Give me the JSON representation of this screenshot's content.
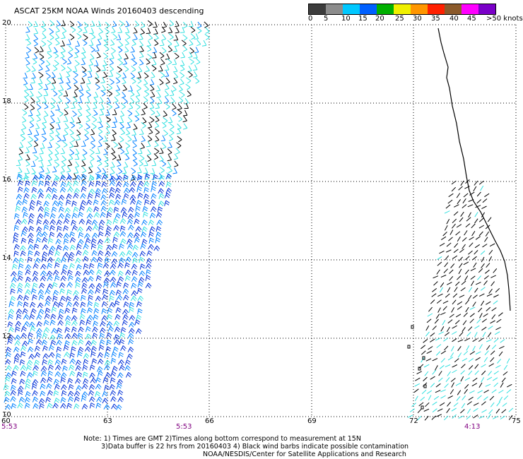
{
  "title": "ASCAT 25KM NOAA Winds 20160403 descending",
  "legend": {
    "labels": [
      "0",
      "5",
      "10",
      "15",
      "20",
      "25",
      "30",
      "35",
      "40",
      "45",
      ">50 knots"
    ],
    "colors": [
      "#3c3c3c",
      "#8c8c8c",
      "#00c8ff",
      "#0060ff",
      "#00b000",
      "#f0f000",
      "#ff9600",
      "#ff2000",
      "#8b5a2b",
      "#ff00ff",
      "#7a00c8"
    ]
  },
  "lat_labels": [
    "20",
    "18",
    "16",
    "14",
    "12",
    "10"
  ],
  "lon_labels": [
    "60",
    "63",
    "66",
    "69",
    "72",
    "75"
  ],
  "times": [
    "5:53",
    "5:53",
    "4:13"
  ],
  "time_color": "#800080",
  "notes": [
    "Note: 1) Times are GMT 2)Times along bottom correspond to measurement at 15N",
    "3)Data buffer is 22 hrs from 20160403 4) Black wind barbs indicate possible contamination",
    "NOAA/NESDIS/Center for Satellite Applications and Research"
  ],
  "barb_colors": {
    "fast": "#0030d8",
    "medium": "#0080ff",
    "light": "#30e0e0",
    "contaminated": "#000000"
  }
}
